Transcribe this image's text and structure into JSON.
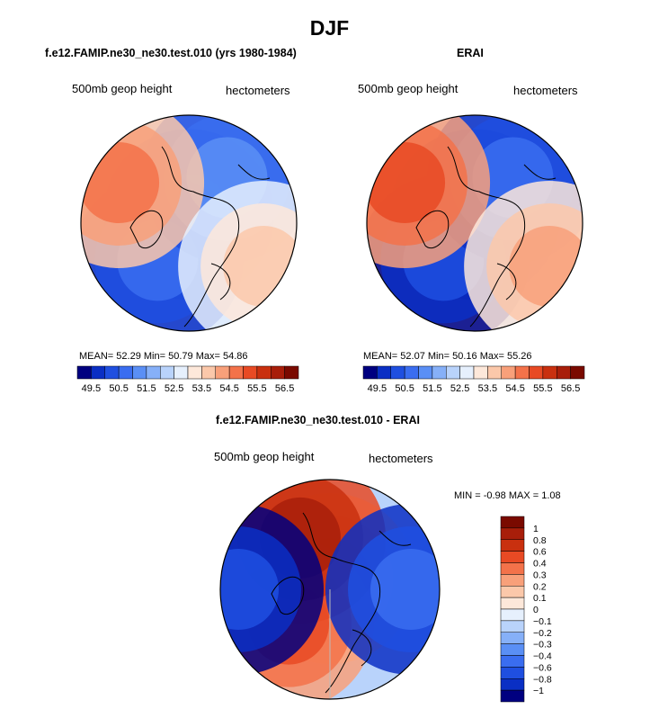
{
  "title": "DJF",
  "colors": {
    "levels": [
      "#000080",
      "#0a2fc4",
      "#1f4fe0",
      "#3a6df0",
      "#5a8ff5",
      "#86b0f8",
      "#b9d3fb",
      "#e6f0fd",
      "#fde8da",
      "#fbc8aa",
      "#f8a07a",
      "#f3724a",
      "#e84a24",
      "#c9300f",
      "#a81e0a",
      "#7a0a00"
    ],
    "diff": [
      "#000080",
      "#0a2fc4",
      "#1f4fe0",
      "#3a6df0",
      "#5a8ff5",
      "#86b0f8",
      "#b9d3fb",
      "#e6f0fd",
      "#fde8da",
      "#fbc8aa",
      "#f8a07a",
      "#f3724a",
      "#e84a24",
      "#c9300f",
      "#a81e0a",
      "#7a0a00"
    ],
    "coast": "#000000",
    "meridian": "#bbbbbb"
  },
  "chart_data": [
    {
      "type": "heatmap",
      "projection": "north polar stereographic",
      "title": "f.e12.FAMIP.ne30_ne30.test.010 (yrs 1980-1984)",
      "left_label": "500mb geop height",
      "right_label": "hectometers",
      "stats": {
        "mean_label": "MEAN=",
        "mean": "52.29",
        "min_label": "Min=",
        "min": "50.79",
        "max_label": "Max=",
        "max": "54.86"
      },
      "colorbar": {
        "orientation": "horizontal",
        "ticks": [
          "49.5",
          "50.5",
          "51.5",
          "52.5",
          "53.5",
          "54.5",
          "55.5",
          "56.5"
        ],
        "range": [
          49,
          57
        ]
      },
      "field": [
        {
          "angle": 0,
          "r": 0.08,
          "level": 4
        },
        {
          "angle": 220,
          "r": 0.45,
          "level": 3
        },
        {
          "angle": 40,
          "r": 0.55,
          "level": 4
        },
        {
          "angle": 300,
          "r": 0.75,
          "level": 11
        },
        {
          "angle": 120,
          "r": 0.8,
          "level": 9
        }
      ]
    },
    {
      "type": "heatmap",
      "projection": "north polar stereographic",
      "title": "ERAI",
      "left_label": "500mb geop height",
      "right_label": "hectometers",
      "stats": {
        "mean_label": "MEAN=",
        "mean": "52.07",
        "min_label": "Min=",
        "min": "50.16",
        "max_label": "Max=",
        "max": "55.26"
      },
      "colorbar": {
        "orientation": "horizontal",
        "ticks": [
          "49.5",
          "50.5",
          "51.5",
          "52.5",
          "53.5",
          "54.5",
          "55.5",
          "56.5"
        ],
        "range": [
          49,
          57
        ]
      },
      "field": [
        {
          "angle": 0,
          "r": 0.08,
          "level": 3
        },
        {
          "angle": 220,
          "r": 0.45,
          "level": 2
        },
        {
          "angle": 40,
          "r": 0.55,
          "level": 3
        },
        {
          "angle": 300,
          "r": 0.75,
          "level": 12
        },
        {
          "angle": 120,
          "r": 0.8,
          "level": 10
        }
      ]
    },
    {
      "type": "heatmap",
      "projection": "north polar stereographic",
      "title": "f.e12.FAMIP.ne30_ne30.test.010 - ERAI",
      "left_label": "500mb geop height",
      "right_label": "hectometers",
      "stats": {
        "min_label": "MIN =",
        "min": "-0.98",
        "max_label": "MAX =",
        "max": "1.08"
      },
      "colorbar": {
        "orientation": "vertical",
        "ticks": [
          "1",
          "0.8",
          "0.6",
          "0.4",
          "0.3",
          "0.2",
          "0.1",
          "0",
          "−0.1",
          "−0.2",
          "−0.3",
          "−0.4",
          "−0.6",
          "−0.8",
          "−1"
        ],
        "range": [
          -1,
          1
        ]
      },
      "field": [
        {
          "angle": 0,
          "r": 0.1,
          "level": 11
        },
        {
          "angle": 230,
          "r": 0.5,
          "level": 12
        },
        {
          "angle": 330,
          "r": 0.55,
          "level": 14
        },
        {
          "angle": 90,
          "r": 0.75,
          "level": 3
        },
        {
          "angle": 270,
          "r": 0.85,
          "level": 2
        }
      ]
    }
  ]
}
